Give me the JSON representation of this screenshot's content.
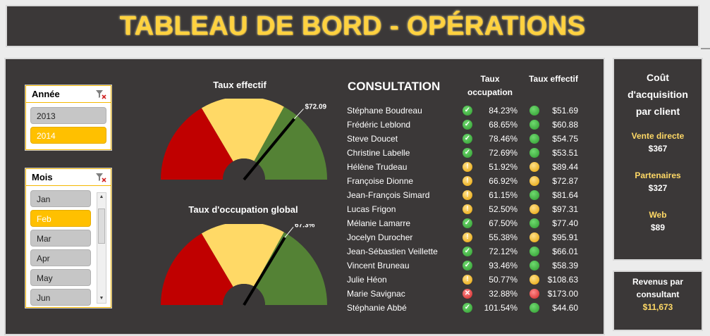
{
  "header": {
    "title": "TABLEAU DE BORD - OPÉRATIONS"
  },
  "slicer_annee": {
    "title": "Année",
    "items": [
      {
        "label": "2013",
        "selected": false
      },
      {
        "label": "2014",
        "selected": true
      }
    ]
  },
  "slicer_mois": {
    "title": "Mois",
    "items": [
      {
        "label": "Jan",
        "selected": false
      },
      {
        "label": "Feb",
        "selected": true
      },
      {
        "label": "Mar",
        "selected": false
      },
      {
        "label": "Apr",
        "selected": false
      },
      {
        "label": "May",
        "selected": false
      },
      {
        "label": "Jun",
        "selected": false
      }
    ]
  },
  "gauge_effectif": {
    "title": "Taux effectif",
    "value_label": "$72.09",
    "needle_fraction": 0.72,
    "zone_colors": [
      "#c00000",
      "#ffd966",
      "#548235"
    ]
  },
  "gauge_occupation": {
    "title": "Taux d'occupation global",
    "value_label": "67.3%",
    "needle_fraction": 0.673,
    "zone_colors": [
      "#c00000",
      "#ffd966",
      "#548235"
    ]
  },
  "consultation": {
    "title": "CONSULTATION",
    "col_occupation": "Taux occupation",
    "col_effectif": "Taux effectif",
    "rows": [
      {
        "name": "Stéphane Boudreau",
        "occ_icon": "check",
        "occupation": "84.23%",
        "eff_dot": "green",
        "effectif": "$51.69"
      },
      {
        "name": "Frédéric Leblond",
        "occ_icon": "check",
        "occupation": "68.65%",
        "eff_dot": "green",
        "effectif": "$60.88"
      },
      {
        "name": "Steve Doucet",
        "occ_icon": "check",
        "occupation": "78.46%",
        "eff_dot": "green",
        "effectif": "$54.75"
      },
      {
        "name": "Christine Labelle",
        "occ_icon": "check",
        "occupation": "72.69%",
        "eff_dot": "green",
        "effectif": "$53.51"
      },
      {
        "name": "Hélène Trudeau",
        "occ_icon": "warning",
        "occupation": "51.92%",
        "eff_dot": "yellow",
        "effectif": "$89.44"
      },
      {
        "name": "Françoise Dionne",
        "occ_icon": "warning",
        "occupation": "66.92%",
        "eff_dot": "yellow",
        "effectif": "$72.87"
      },
      {
        "name": "Jean-François Simard",
        "occ_icon": "warning",
        "occupation": "61.15%",
        "eff_dot": "green",
        "effectif": "$81.64"
      },
      {
        "name": "Lucas Frigon",
        "occ_icon": "warning",
        "occupation": "52.50%",
        "eff_dot": "yellow",
        "effectif": "$97.31"
      },
      {
        "name": "Mélanie Lamarre",
        "occ_icon": "check",
        "occupation": "67.50%",
        "eff_dot": "green",
        "effectif": "$77.40"
      },
      {
        "name": "Jocelyn Durocher",
        "occ_icon": "warning",
        "occupation": "55.38%",
        "eff_dot": "yellow",
        "effectif": "$95.91"
      },
      {
        "name": "Jean-Sébastien Veillette",
        "occ_icon": "check",
        "occupation": "72.12%",
        "eff_dot": "green",
        "effectif": "$66.01"
      },
      {
        "name": "Vincent Bruneau",
        "occ_icon": "check",
        "occupation": "93.46%",
        "eff_dot": "green",
        "effectif": "$58.39"
      },
      {
        "name": "Julie Héon",
        "occ_icon": "warning",
        "occupation": "50.77%",
        "eff_dot": "yellow",
        "effectif": "$108.63"
      },
      {
        "name": "Marie Savignac",
        "occ_icon": "cross",
        "occupation": "32.88%",
        "eff_dot": "red",
        "effectif": "$173.00"
      },
      {
        "name": "Stéphanie Abbé",
        "occ_icon": "check",
        "occupation": "101.54%",
        "eff_dot": "green",
        "effectif": "$44.60"
      }
    ]
  },
  "cout_acquisition": {
    "title": "Coût d'acquisition par client",
    "items": [
      {
        "label": "Vente directe",
        "value": "$367"
      },
      {
        "label": "Partenaires",
        "value": "$327"
      },
      {
        "label": "Web",
        "value": "$89"
      }
    ]
  },
  "revenus": {
    "title": "Revenus par consultant",
    "value": "$11,673"
  }
}
